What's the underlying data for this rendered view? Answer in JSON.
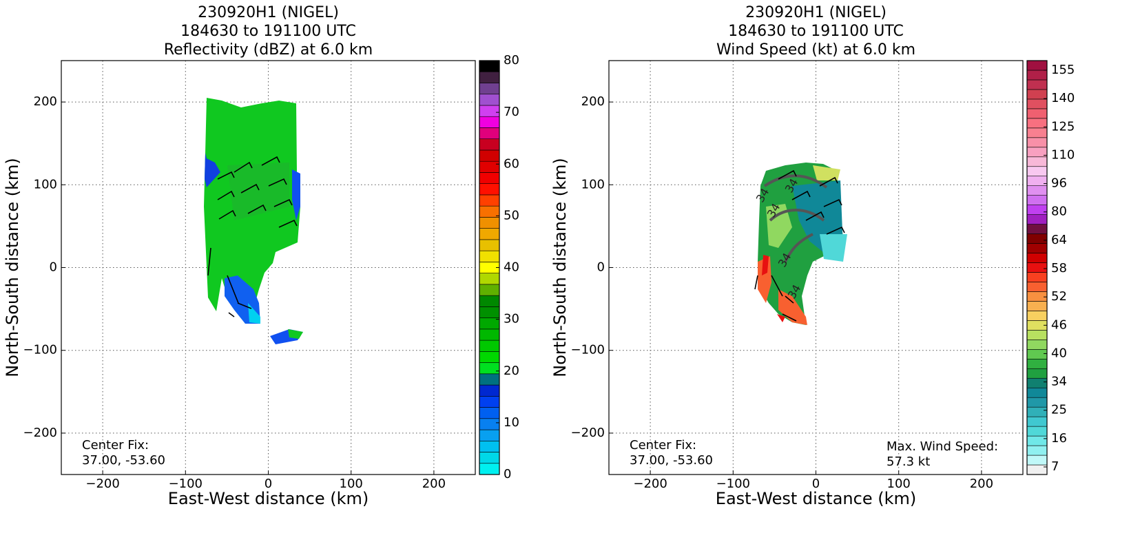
{
  "chart_data": [
    {
      "type": "heatmap",
      "title": [
        "230920H1 (NIGEL)",
        "184630 to 191100 UTC",
        "Reflectivity (dBZ) at 6.0 km"
      ],
      "xlabel": "East-West distance (km)",
      "ylabel": "North-South distance (km)",
      "xlim": [
        -250,
        250
      ],
      "ylim": [
        -250,
        250
      ],
      "xticks": [
        {
          "value": -200,
          "label": "−200"
        },
        {
          "value": -100,
          "label": "−100"
        },
        0,
        100,
        200
      ],
      "yticks": [
        {
          "value": -200,
          "label": "−200"
        },
        {
          "value": -100,
          "label": "−100"
        },
        0,
        100,
        200
      ],
      "grid": true,
      "colorbar": {
        "clim": [
          0,
          80
        ],
        "ticks": [
          0,
          10,
          20,
          30,
          40,
          50,
          60,
          70,
          80
        ],
        "colors": [
          "#00f0f0",
          "#00d8e8",
          "#00c0f0",
          "#08a0f0",
          "#0880f0",
          "#0060f0",
          "#0040f0",
          "#0028d0",
          "#007080",
          "#00e020",
          "#00d800",
          "#00c800",
          "#00b800",
          "#00a800",
          "#009000",
          "#008800",
          "#60b000",
          "#b0d800",
          "#ffff00",
          "#f0e000",
          "#e8c000",
          "#f0a800",
          "#f09000",
          "#f87000",
          "#ff4000",
          "#ff1000",
          "#f00000",
          "#e00000",
          "#d00000",
          "#c80020",
          "#e0007c",
          "#f000e0",
          "#d040f0",
          "#a050d0",
          "#704090",
          "#402040",
          "#000000"
        ]
      },
      "annotations": [
        "Center Fix:",
        "37.00, -53.60"
      ]
    },
    {
      "type": "heatmap",
      "title": [
        "230920H1 (NIGEL)",
        "184630 to 191100 UTC",
        "Wind Speed (kt) at 6.0 km"
      ],
      "xlabel": "East-West distance (km)",
      "ylabel": "North-South distance (km)",
      "xlim": [
        -250,
        250
      ],
      "ylim": [
        -250,
        250
      ],
      "xticks": [
        {
          "value": -200,
          "label": "−200"
        },
        {
          "value": -100,
          "label": "−100"
        },
        0,
        100,
        200
      ],
      "yticks": [
        {
          "value": -200,
          "label": "−200"
        },
        {
          "value": -100,
          "label": "−100"
        },
        0,
        100,
        200
      ],
      "grid": true,
      "colorbar": {
        "ticks": [
          7,
          16,
          25,
          34,
          40,
          46,
          52,
          58,
          64,
          80,
          96,
          110,
          125,
          140,
          155
        ],
        "colors": [
          "#f0f0f0",
          "#c0f8f8",
          "#90f0f0",
          "#70e8e8",
          "#50d8d8",
          "#40c8d0",
          "#30b0b8",
          "#2098a8",
          "#108898",
          "#108070",
          "#20a040",
          "#30b040",
          "#60c850",
          "#90d860",
          "#b8e060",
          "#e0e060",
          "#f8d060",
          "#f8b050",
          "#f89040",
          "#f86030",
          "#f84020",
          "#e81010",
          "#d00000",
          "#a00000",
          "#800000",
          "#701040",
          "#a020c0",
          "#c040f0",
          "#d070f0",
          "#e090f0",
          "#f0b0f0",
          "#f8c8f0",
          "#f8b8d8",
          "#f8a0c0",
          "#f890a8",
          "#f88090",
          "#f87080",
          "#f06070",
          "#e05060",
          "#d04050",
          "#c03050",
          "#b02048",
          "#a01040"
        ]
      },
      "annotations": [
        "Center Fix:",
        "37.00, -53.60"
      ],
      "annotations_right": [
        "Max. Wind Speed:",
        "57.3 kt"
      ],
      "contour_labels": [
        34,
        34,
        34,
        34,
        34
      ]
    }
  ]
}
